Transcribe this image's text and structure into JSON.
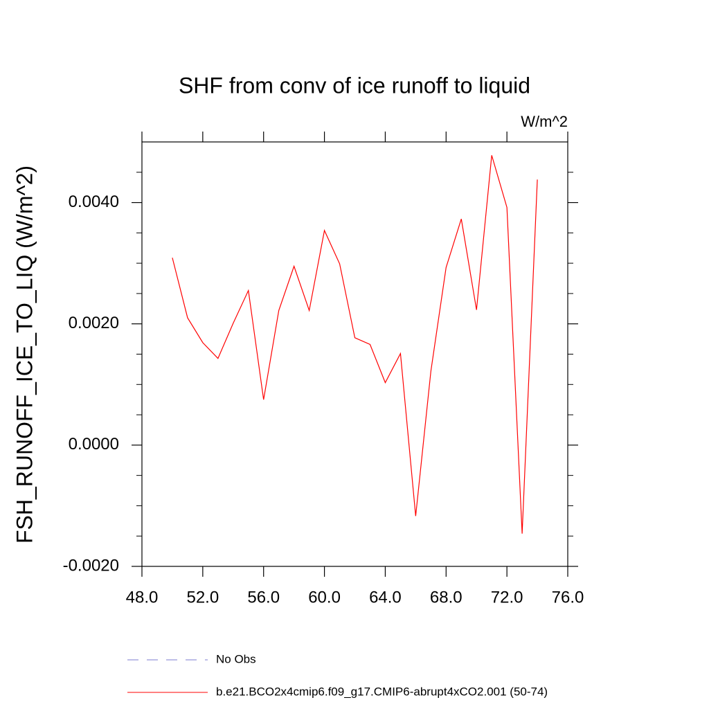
{
  "chart_data": {
    "type": "line",
    "title": "SHF from conv of ice runoff to liquid",
    "units": "W/m^2",
    "y_label": "FSH_RUNOFF_ICE_TO_LIQ  (W/m^2)",
    "x": [
      50,
      51,
      52,
      53,
      54,
      55,
      56,
      57,
      58,
      59,
      60,
      61,
      62,
      63,
      64,
      65,
      66,
      67,
      68,
      69,
      70,
      71,
      72,
      73,
      74
    ],
    "series": [
      {
        "name": "No Obs",
        "color": "#7b7bd0",
        "dashed": true,
        "values": [
          null,
          null,
          null,
          null,
          null,
          null,
          null,
          null,
          null,
          null,
          null,
          null,
          null,
          null,
          null,
          null,
          null,
          null,
          null,
          null,
          null,
          null,
          null,
          null,
          null
        ]
      },
      {
        "name": "b.e21.BCO2x4cmip6.f09_g17.CMIP6-abrupt4xCO2.001 (50-74)",
        "color": "#ff0000",
        "dashed": false,
        "values": [
          0.00309,
          0.0021,
          0.00169,
          0.00143,
          0.00201,
          0.00255,
          0.00075,
          0.00222,
          0.00295,
          0.00222,
          0.00354,
          0.00299,
          0.00177,
          0.00166,
          0.00103,
          0.00151,
          -0.00117,
          0.00122,
          0.00293,
          0.00373,
          0.00223,
          0.00478,
          0.00392,
          -0.00146,
          0.00438
        ]
      }
    ],
    "xlim": [
      48,
      76
    ],
    "xticks": [
      {
        "value": 48,
        "label": "48.0"
      },
      {
        "value": 52,
        "label": "52.0"
      },
      {
        "value": 56,
        "label": "56.0"
      },
      {
        "value": 60,
        "label": "60.0"
      },
      {
        "value": 64,
        "label": "64.0"
      },
      {
        "value": 68,
        "label": "68.0"
      },
      {
        "value": 72,
        "label": "72.0"
      },
      {
        "value": 76,
        "label": "76.0"
      }
    ],
    "ylim": [
      -0.002,
      0.005
    ],
    "yticks": [
      {
        "value": -0.002,
        "label": "-0.0020"
      },
      {
        "value": 0,
        "label": "0.0000"
      },
      {
        "value": 0.002,
        "label": "0.0020"
      },
      {
        "value": 0.004,
        "label": "0.0040"
      }
    ],
    "y_minor_ticks": [
      -0.0015,
      -0.001,
      -0.0005,
      0.0005,
      0.001,
      0.0015,
      0.0025,
      0.003,
      0.0035,
      0.0045
    ],
    "grid": false
  }
}
